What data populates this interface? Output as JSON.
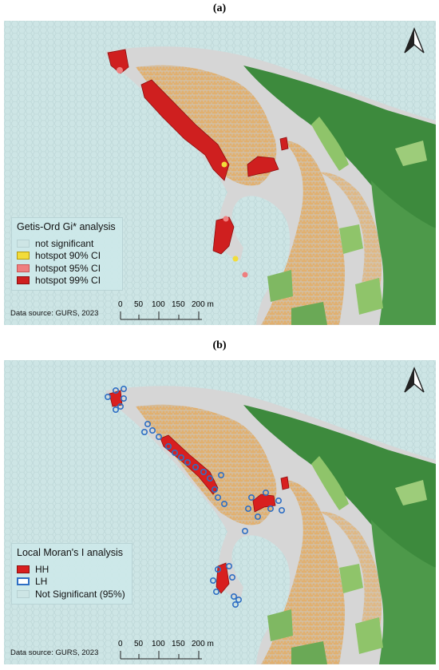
{
  "panels": [
    {
      "label": "(a)",
      "legend": {
        "title": "Getis-Ord Gi* analysis",
        "items": [
          {
            "label": "not significant",
            "fill": "#cde5e5",
            "stroke": "#b7d1d2"
          },
          {
            "label": "hotspot 90% CI",
            "fill": "#f2dc3a",
            "stroke": "#b59a10"
          },
          {
            "label": "hotspot 95% CI",
            "fill": "#ef7f7f",
            "stroke": "#c95656"
          },
          {
            "label": "hotspot 99% CI",
            "fill": "#cf1f1f",
            "stroke": "#8c0f0f"
          }
        ]
      },
      "source": "Data source: GURS, 2023",
      "scale": {
        "ticks": [
          "0",
          "50",
          "100",
          "150",
          "200 m"
        ]
      }
    },
    {
      "label": "(b)",
      "legend": {
        "title": "Local Moran's I analysis",
        "items": [
          {
            "label": "HH",
            "fill": "#d81f1f",
            "stroke": "#8c0f0f"
          },
          {
            "label": "LH",
            "fill": "#ffffff",
            "stroke": "#2f6fc4"
          },
          {
            "label": "Not Significant (95%)",
            "fill": "#cde5e5",
            "stroke": "#b7d1d2"
          }
        ]
      },
      "source": "Data source: GURS, 2023",
      "scale": {
        "ticks": [
          "0",
          "50",
          "100",
          "150",
          "200 m"
        ]
      }
    }
  ],
  "colors": {
    "sea": "#cde5e5",
    "land": "#d6d6d6",
    "buildings": "#e3b373",
    "green_dark": "#3d8a3d",
    "green_light": "#8fc46a",
    "hh": "#d81f1f",
    "lh_ring": "#2f6fc4"
  }
}
